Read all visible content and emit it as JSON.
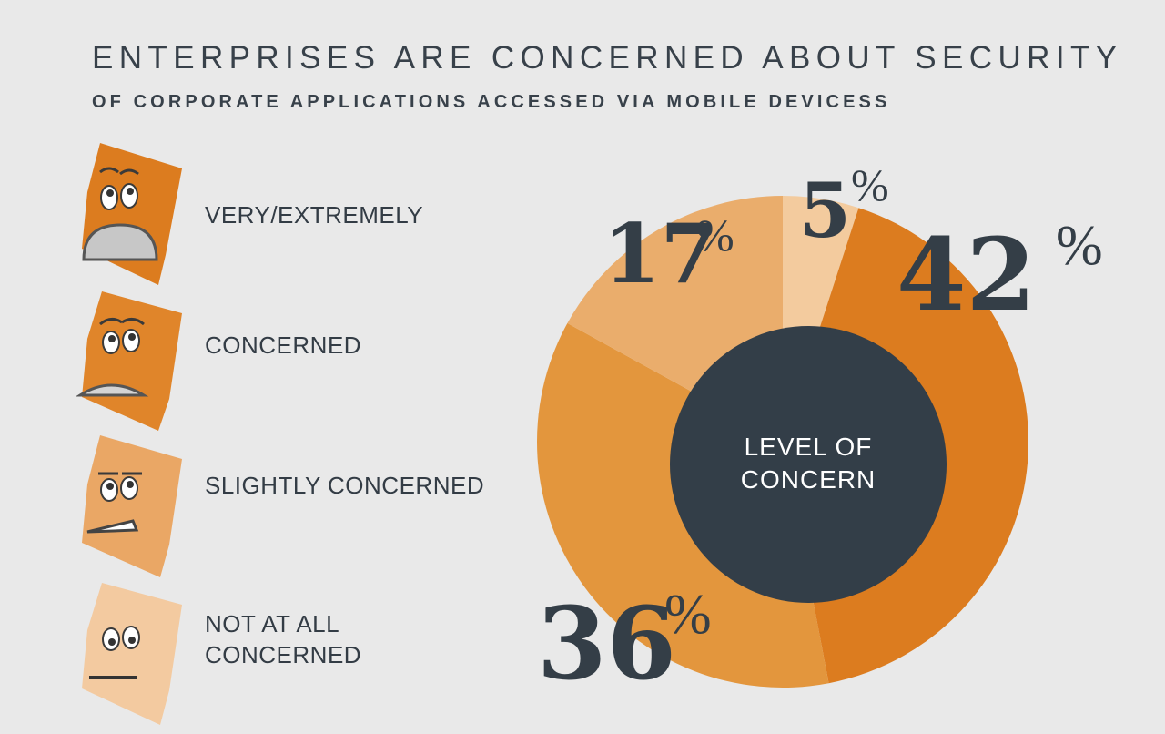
{
  "title": "ENTERPRISES ARE CONCERNED ABOUT SECURITY",
  "subtitle": "OF CORPORATE APPLICATIONS ACCESSED VIA MOBILE DEVICESS",
  "legend": [
    {
      "label": "VERY/EXTREMELY",
      "color": "#dc7c1f",
      "icon": "very-worried-face-icon"
    },
    {
      "label": "CONCERNED",
      "color": "#e0852a",
      "icon": "concerned-face-icon"
    },
    {
      "label": "SLIGHTLY CONCERNED",
      "color": "#eaa765",
      "icon": "slightly-concerned-face-icon"
    },
    {
      "label": "NOT AT ALL\nCONCERNED",
      "color": "#f3caa0",
      "icon": "unconcerned-face-icon"
    }
  ],
  "chart_data": {
    "type": "pie",
    "center_label": "LEVEL OF\nCONCERN",
    "slices": [
      {
        "label": "VERY/EXTREMELY",
        "value": 42,
        "display": "42",
        "color": "#dc7c1f"
      },
      {
        "label": "CONCERNED",
        "value": 36,
        "display": "36",
        "color": "#e3963d"
      },
      {
        "label": "SLIGHTLY CONCERNED",
        "value": 17,
        "display": "17",
        "color": "#eaad6c"
      },
      {
        "label": "NOT AT ALL CONCERNED",
        "value": 5,
        "display": "5",
        "color": "#f3cb9e"
      }
    ],
    "percent_sign": "%",
    "center_color": "#333e48"
  }
}
